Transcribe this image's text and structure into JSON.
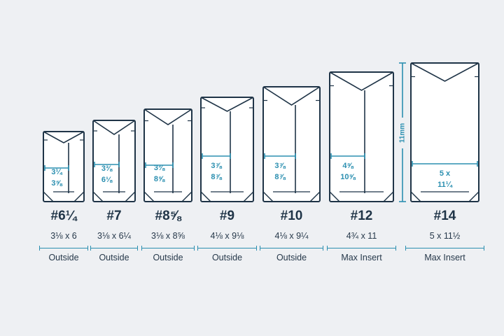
{
  "colors": {
    "background": "#eef0f3",
    "outline": "#1f3447",
    "accent": "#2b8fb0"
  },
  "scale": {
    "label": "11mm"
  },
  "envelopes": [
    {
      "id": "6-1-4",
      "number": "#6¼",
      "size": "3⅛ x 6",
      "inner": [
        "3¼",
        "3⅝"
      ],
      "note": "Outside"
    },
    {
      "id": "7",
      "number": "#7",
      "size": "3⅛ x 6¼",
      "inner": [
        "3⅜",
        "6⅛"
      ],
      "note": "Outside"
    },
    {
      "id": "8-5-8",
      "number": "#8⅝",
      "size": "3⅛ x 8⅝",
      "inner": [
        "3⅜",
        "8⅝"
      ],
      "note": "Outside"
    },
    {
      "id": "9",
      "number": "#9",
      "size": "4⅛ x 9⅛",
      "inner": [
        "3⅞",
        "8⅞"
      ],
      "note": "Outside"
    },
    {
      "id": "10",
      "number": "#10",
      "size": "4⅛ x 9¼",
      "inner": [
        "3⅞",
        "8⅞"
      ],
      "note": "Outside"
    },
    {
      "id": "12",
      "number": "#12",
      "size": "4¾ x 11",
      "inner": [
        "4⅝",
        "10⅝"
      ],
      "note": "Max Insert"
    },
    {
      "id": "14",
      "number": "#14",
      "size": "5 x 11½",
      "inner": [
        "5 x",
        "11¼"
      ],
      "note": "Max Insert"
    }
  ]
}
